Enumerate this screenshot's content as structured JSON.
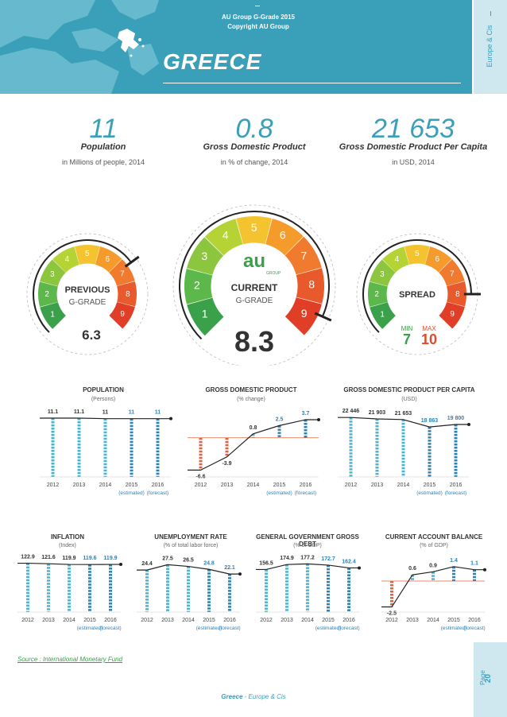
{
  "header": {
    "title_line1": "AU Group G-Grade 2015",
    "title_line2": "Copyright AU Group",
    "country": "GREECE",
    "side_tab": "Europe & Cis"
  },
  "stats": [
    {
      "value": "11",
      "label": "Population",
      "sub": "in Millions of people, 2014"
    },
    {
      "value": "0.8",
      "label": "Gross Domestic Product",
      "sub": "in % of change, 2014"
    },
    {
      "value": "21 653",
      "label": "Gross Domestic Product Per Capita",
      "sub": "in USD, 2014"
    }
  ],
  "gauges": {
    "previous": {
      "label1": "PREVIOUS",
      "label2": "G-GRADE",
      "value": "6.3"
    },
    "current": {
      "label1": "CURRENT",
      "label2": "G-GRADE",
      "value": "8.3",
      "logo": "au",
      "logo_sub": "GROUP"
    },
    "spread": {
      "label1": "SPREAD",
      "min_label": "MIN",
      "max_label": "MAX",
      "min": "7",
      "max": "10"
    },
    "scale": [
      "1",
      "2",
      "3",
      "4",
      "5",
      "6",
      "7",
      "8",
      "9"
    ]
  },
  "charts_row1": [
    {
      "title": "POPULATION",
      "subtitle": "(Persons)"
    },
    {
      "title": "GROSS DOMESTIC PRODUCT",
      "subtitle": "(% change)"
    },
    {
      "title": "GROSS DOMESTIC PRODUCT PER CAPITA",
      "subtitle": "(USD)"
    }
  ],
  "charts_row2": [
    {
      "title": "INFLATION",
      "subtitle": "(Index)"
    },
    {
      "title": "UNEMPLOYMENT RATE",
      "subtitle": "(% of total labor force)"
    },
    {
      "title": "GENERAL GOVERNMENT GROSS DEBT",
      "subtitle": "(% of GDP)"
    },
    {
      "title": "CURRENT ACCOUNT BALANCE",
      "subtitle": "(% of GDP)"
    }
  ],
  "chart_data": [
    {
      "type": "bar",
      "title": "POPULATION",
      "categories": [
        "2012",
        "2013",
        "2014",
        "2015",
        "2016"
      ],
      "values": [
        11.1,
        11.1,
        11,
        11,
        11
      ],
      "labels": [
        "11.1",
        "11.1",
        "11",
        "11",
        "11"
      ],
      "ylim": [
        0,
        12
      ]
    },
    {
      "type": "bar",
      "title": "GROSS DOMESTIC PRODUCT",
      "categories": [
        "2012",
        "2013",
        "2014",
        "2015",
        "2016"
      ],
      "values": [
        -6.6,
        -3.9,
        0.8,
        2.5,
        3.7
      ],
      "labels": [
        "-6.6",
        "-3.9",
        "0.8",
        "2.5",
        "3.7"
      ],
      "ylim": [
        -8,
        5
      ]
    },
    {
      "type": "bar",
      "title": "GROSS DOMESTIC PRODUCT PER CAPITA",
      "categories": [
        "2012",
        "2013",
        "2014",
        "2015",
        "2016"
      ],
      "values": [
        22446,
        21903,
        21653,
        18863,
        19800
      ],
      "labels": [
        "22 446",
        "21 903",
        "21 653",
        "18 863",
        "19 800"
      ],
      "ylim": [
        0,
        24000
      ]
    },
    {
      "type": "bar",
      "title": "INFLATION",
      "categories": [
        "2012",
        "2013",
        "2014",
        "2015",
        "2016"
      ],
      "values": [
        122.9,
        121.6,
        119.9,
        119.6,
        119.9
      ],
      "labels": [
        "122.9",
        "121.6",
        "119.9",
        "119.6",
        "119.9"
      ],
      "ylim": [
        0,
        130
      ]
    },
    {
      "type": "bar",
      "title": "UNEMPLOYMENT RATE",
      "categories": [
        "2012",
        "2013",
        "2014",
        "2015",
        "2016"
      ],
      "values": [
        24.4,
        27.5,
        26.5,
        24.8,
        22.1
      ],
      "labels": [
        "24.4",
        "27.5",
        "26.5",
        "24.8",
        "22.1"
      ],
      "ylim": [
        0,
        30
      ]
    },
    {
      "type": "bar",
      "title": "GENERAL GOVERNMENT GROSS DEBT",
      "categories": [
        "2012",
        "2013",
        "2014",
        "2015",
        "2016"
      ],
      "values": [
        156.5,
        174.9,
        177.2,
        172.7,
        162.4
      ],
      "labels": [
        "156.5",
        "174.9",
        "177.2",
        "172.7",
        "162.4"
      ],
      "ylim": [
        0,
        190
      ]
    },
    {
      "type": "bar",
      "title": "CURRENT ACCOUNT BALANCE",
      "categories": [
        "2012",
        "2013",
        "2014",
        "2015",
        "2016"
      ],
      "values": [
        -2.5,
        0.6,
        0.9,
        1.4,
        1.1
      ],
      "labels": [
        "-2.5",
        "0.6",
        "0.9",
        "1.4",
        "1.1"
      ],
      "ylim": [
        -3,
        2
      ]
    }
  ],
  "forecast_labels": {
    "estimated": "(estimated)",
    "forecast": "(forecast)"
  },
  "colors": {
    "accent": "#3a9fb9",
    "bar_light": "#4ab5d1",
    "bar_dark": "#2f82b8",
    "negative": "#e2603f",
    "green": "#3aa04a",
    "red": "#e04a2c"
  },
  "source": "Source : International Monetary Fund",
  "footer": {
    "country": "Greece",
    "sep": " - ",
    "region": "Europe & Cis"
  },
  "page": {
    "label": "Page",
    "number": "20"
  }
}
